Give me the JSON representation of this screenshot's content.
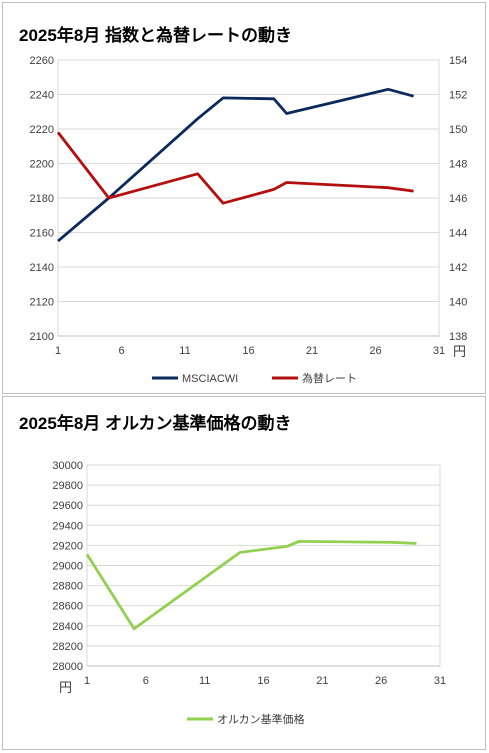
{
  "charts": {
    "chart1_title": "2025年8月 指数と為替レートの動き",
    "chart2_title": "2025年8月 オルカン基準価格の動き"
  },
  "chart_data": [
    {
      "type": "line",
      "title": "2025年8月 指数と為替レートの動き",
      "x_unit": "円",
      "x_ticks": [
        1,
        6,
        11,
        16,
        21,
        26,
        31
      ],
      "xlim": [
        1,
        31
      ],
      "ylim": [
        2100,
        2260
      ],
      "y_ticks": [
        2100,
        2120,
        2140,
        2160,
        2180,
        2200,
        2220,
        2240,
        2260
      ],
      "y2lim": [
        138,
        154
      ],
      "y2_ticks": [
        138,
        140,
        142,
        144,
        146,
        148,
        150,
        152,
        154
      ],
      "grid": true,
      "legend": "bottom",
      "series": [
        {
          "name": "MSCIACWI",
          "axis": "left",
          "color": "#0b2a5b",
          "x": [
            1,
            5,
            12,
            14,
            18,
            19,
            27,
            29
          ],
          "values": [
            2155,
            2180,
            2226,
            2238,
            2237.5,
            2229,
            2243,
            2239
          ]
        },
        {
          "name": "為替レート",
          "axis": "right",
          "color": "#b40f0f",
          "x": [
            1,
            5,
            12,
            14,
            18,
            19,
            27,
            29
          ],
          "values": [
            149.8,
            146.0,
            147.4,
            145.7,
            146.5,
            146.9,
            146.6,
            146.4
          ]
        }
      ]
    },
    {
      "type": "line",
      "title": "2025年8月 オルカン基準価格の動き",
      "y_unit": "円",
      "x_ticks": [
        1,
        6,
        11,
        16,
        21,
        26,
        31
      ],
      "xlim": [
        1,
        31
      ],
      "ylim": [
        28000,
        30000
      ],
      "y_ticks": [
        28000,
        28200,
        28400,
        28600,
        28800,
        29000,
        29200,
        29400,
        29600,
        29800,
        30000
      ],
      "grid": true,
      "legend": "bottom",
      "series": [
        {
          "name": "オルカン基準価格",
          "color": "#92d050",
          "x": [
            1,
            5,
            14,
            18,
            19,
            27,
            29
          ],
          "values": [
            29110,
            28370,
            29130,
            29190,
            29240,
            29230,
            29220
          ]
        }
      ]
    }
  ]
}
